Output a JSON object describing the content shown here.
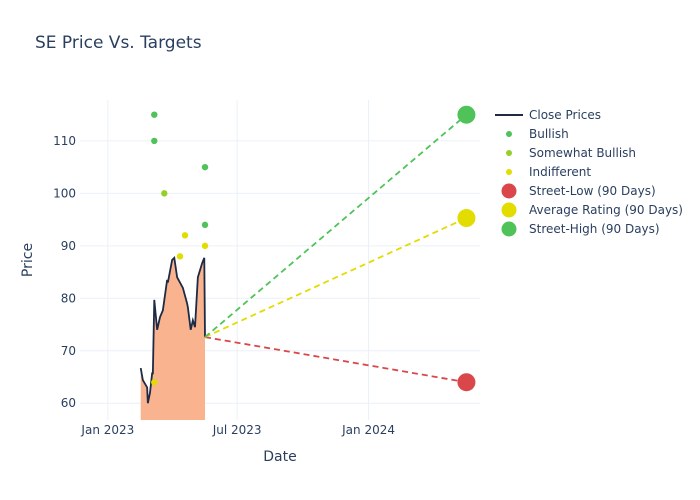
{
  "chart_data": {
    "type": "line",
    "title": "SE Price Vs. Targets",
    "xlabel": "Date",
    "ylabel": "Price",
    "xlim": [
      "2022-11-23",
      "2024-06-05"
    ],
    "ylim": [
      56.8,
      117.8
    ],
    "x_ticks": [
      {
        "date": "2023-01-01",
        "label": "Jan 2023"
      },
      {
        "date": "2023-07-01",
        "label": "Jul 2023"
      },
      {
        "date": "2024-01-01",
        "label": "Jan 2024"
      }
    ],
    "y_ticks": [
      60,
      70,
      80,
      90,
      100,
      110
    ],
    "grid": true,
    "legend_placement": "right",
    "close_prices": {
      "name": "Close Prices",
      "color": "#1f2a44",
      "fill": "#f9b38e",
      "points": [
        [
          "2023-02-16",
          66.7
        ],
        [
          "2023-02-19",
          64.4
        ],
        [
          "2023-02-25",
          63.0
        ],
        [
          "2023-02-26",
          60.0
        ],
        [
          "2023-03-01",
          62.0
        ],
        [
          "2023-03-04",
          65.7
        ],
        [
          "2023-03-05",
          65.7
        ],
        [
          "2023-03-07",
          79.7
        ],
        [
          "2023-03-11",
          74.0
        ],
        [
          "2023-03-15",
          76.4
        ],
        [
          "2023-03-19",
          77.7
        ],
        [
          "2023-03-25",
          83.5
        ],
        [
          "2023-03-26",
          83.0
        ],
        [
          "2023-04-01",
          87.3
        ],
        [
          "2023-04-04",
          87.7
        ],
        [
          "2023-04-08",
          84.0
        ],
        [
          "2023-04-12",
          83.0
        ],
        [
          "2023-04-16",
          82.0
        ],
        [
          "2023-04-22",
          79.0
        ],
        [
          "2023-04-23",
          78.3
        ],
        [
          "2023-04-27",
          74.0
        ],
        [
          "2023-04-30",
          75.8
        ],
        [
          "2023-05-03",
          74.5
        ],
        [
          "2023-05-07",
          84.0
        ],
        [
          "2023-05-13",
          86.7
        ],
        [
          "2023-05-16",
          87.7
        ],
        [
          "2023-05-17",
          72.6
        ]
      ]
    },
    "ratings": [
      {
        "name": "Bullish",
        "color": "#4fc35a",
        "points": [
          [
            "2023-03-07",
            115
          ],
          [
            "2023-03-07",
            110
          ],
          [
            "2023-05-17",
            105
          ],
          [
            "2023-05-17",
            94
          ]
        ]
      },
      {
        "name": "Somewhat Bullish",
        "color": "#95cf2a",
        "points": [
          [
            "2023-03-21",
            100
          ]
        ]
      },
      {
        "name": "Indifferent",
        "color": "#e2dc00",
        "points": [
          [
            "2023-04-19",
            92
          ],
          [
            "2023-04-12",
            88
          ],
          [
            "2023-05-17",
            90
          ],
          [
            "2023-03-07",
            64
          ]
        ]
      }
    ],
    "targets": {
      "start": [
        "2023-05-17",
        72.6
      ],
      "end_date": "2024-05-17",
      "series": [
        {
          "name": "Street-Low (90 Days)",
          "color": "#d9474b",
          "value": 64
        },
        {
          "name": "Average Rating (90 Days)",
          "color": "#e2dc00",
          "value": 95.3
        },
        {
          "name": "Street-High (90 Days)",
          "color": "#4fc35a",
          "value": 115
        }
      ]
    }
  }
}
